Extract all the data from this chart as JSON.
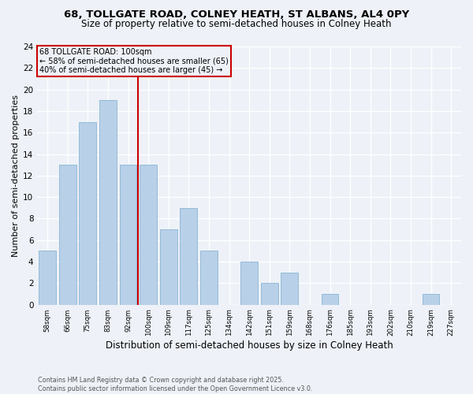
{
  "title_line1": "68, TOLLGATE ROAD, COLNEY HEATH, ST ALBANS, AL4 0PY",
  "title_line2": "Size of property relative to semi-detached houses in Colney Heath",
  "categories": [
    "58sqm",
    "66sqm",
    "75sqm",
    "83sqm",
    "92sqm",
    "100sqm",
    "109sqm",
    "117sqm",
    "125sqm",
    "134sqm",
    "142sqm",
    "151sqm",
    "159sqm",
    "168sqm",
    "176sqm",
    "185sqm",
    "193sqm",
    "202sqm",
    "210sqm",
    "219sqm",
    "227sqm"
  ],
  "values": [
    5,
    13,
    17,
    19,
    13,
    13,
    7,
    9,
    5,
    0,
    4,
    2,
    3,
    0,
    1,
    0,
    0,
    0,
    0,
    1,
    0
  ],
  "bar_color": "#b8d0e8",
  "bar_edge_color": "#8ab4d4",
  "property_index": 5,
  "vline_color": "#cc0000",
  "annotation_box_edge_color": "#cc0000",
  "annotation_title": "68 TOLLGATE ROAD: 100sqm",
  "annotation_line2": "← 58% of semi-detached houses are smaller (65)",
  "annotation_line3": "40% of semi-detached houses are larger (45) →",
  "ylabel": "Number of semi-detached properties",
  "xlabel": "Distribution of semi-detached houses by size in Colney Heath",
  "footer": "Contains HM Land Registry data © Crown copyright and database right 2025.\nContains public sector information licensed under the Open Government Licence v3.0.",
  "ylim": [
    0,
    24
  ],
  "yticks": [
    0,
    2,
    4,
    6,
    8,
    10,
    12,
    14,
    16,
    18,
    20,
    22,
    24
  ],
  "background_color": "#eef2f8",
  "grid_color": "#ffffff",
  "title_fontsize": 9.5,
  "subtitle_fontsize": 8.5,
  "xlabel_fontsize": 8.5,
  "ylabel_fontsize": 8,
  "footer_fontsize": 5.8,
  "bar_width": 0.85
}
